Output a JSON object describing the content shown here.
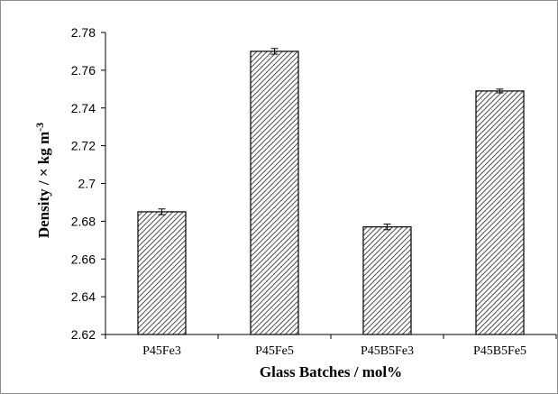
{
  "chart_data": {
    "type": "bar",
    "categories": [
      "P45Fe3",
      "P45Fe5",
      "P45B5Fe3",
      "P45B5Fe5"
    ],
    "values": [
      2.685,
      2.77,
      2.677,
      2.749
    ],
    "errors": [
      0.0015,
      0.0015,
      0.0015,
      0.001
    ],
    "xlabel": "Glass Batches / mol%",
    "ylabel_main": "Density / × kg m",
    "ylabel_sup": "-3",
    "ylim": [
      2.62,
      2.78
    ],
    "yticks": [
      "2.62",
      "2.64",
      "2.66",
      "2.68",
      "2.7",
      "2.72",
      "2.74",
      "2.76",
      "2.78"
    ],
    "grid": false,
    "bar_fill": "diagonal-hatch"
  }
}
